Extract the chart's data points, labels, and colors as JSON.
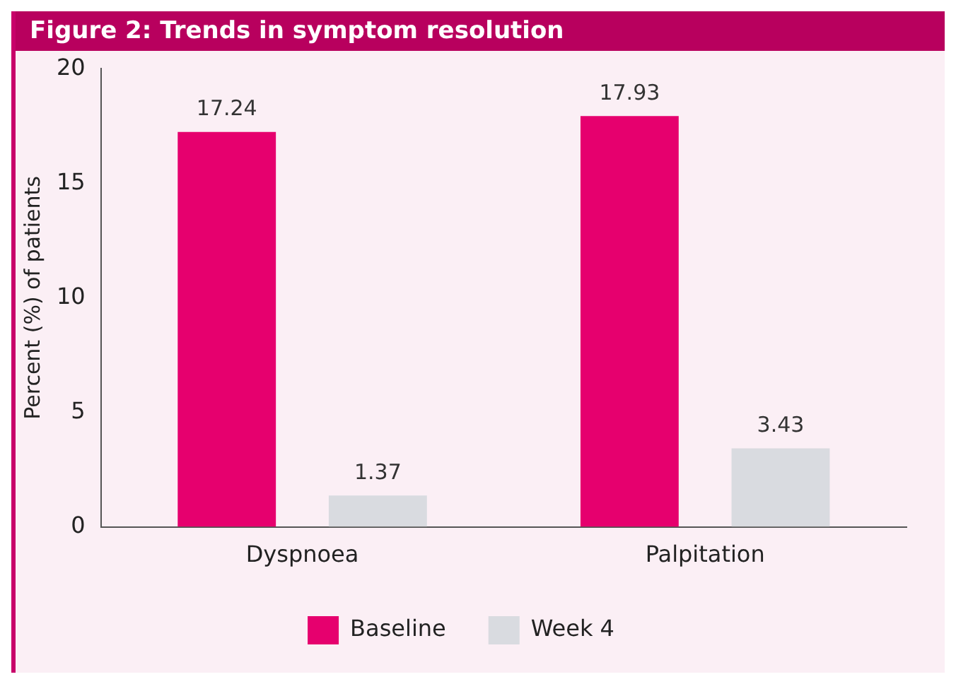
{
  "chart_data": {
    "type": "bar",
    "title": "Figure 2: Trends in symptom resolution",
    "ylabel": "Percent (%) of patients",
    "categories": [
      "Dyspnoea",
      "Palpitation"
    ],
    "series": [
      {
        "name": "Baseline",
        "color": "#e6006e",
        "values": [
          17.24,
          17.93
        ]
      },
      {
        "name": "Week 4",
        "color": "#d9dbe0",
        "values": [
          1.37,
          3.43
        ]
      }
    ],
    "ylim": [
      0,
      20
    ],
    "yticks": [
      0,
      5,
      10,
      15,
      20
    ],
    "grid": false,
    "legend": "bottom",
    "data_labels": true
  }
}
